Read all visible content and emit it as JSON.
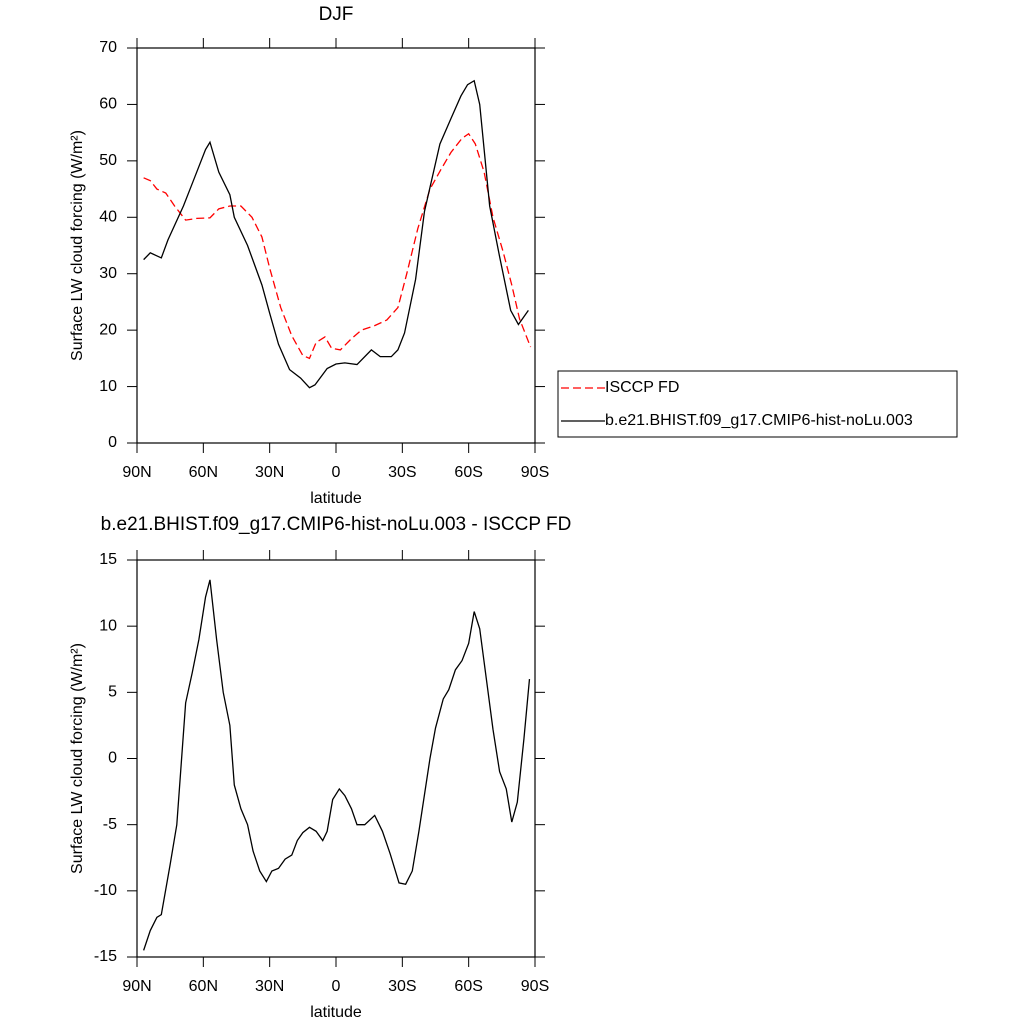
{
  "chart_data": [
    {
      "type": "line",
      "title": "DJF",
      "xlabel": "latitude",
      "ylabel": "Surface LW cloud forcing (W/m²)",
      "xlim": [
        90,
        -90
      ],
      "xticks": [
        {
          "value": 90,
          "label": "90N"
        },
        {
          "value": 60,
          "label": "60N"
        },
        {
          "value": 30,
          "label": "30N"
        },
        0,
        {
          "value": -30,
          "label": "30S"
        },
        {
          "value": -60,
          "label": "60S"
        },
        {
          "value": -90,
          "label": "90S"
        }
      ],
      "ylim": [
        0,
        70
      ],
      "yticks": [
        0,
        10,
        20,
        30,
        40,
        50,
        60,
        70
      ],
      "legend": "right",
      "series": [
        {
          "name": "ISCCP FD",
          "color": "#ff0000",
          "linestyle": "dashed",
          "x": [
            87,
            84,
            81,
            77,
            73,
            68,
            63,
            57,
            53,
            48,
            43,
            38,
            33.5,
            30,
            25,
            20,
            15,
            12,
            9,
            5,
            2,
            -2,
            -7,
            -11.5,
            -17.5,
            -23,
            -28,
            -32,
            -37,
            -42.5,
            -47.5,
            -52,
            -57,
            -60,
            -63,
            -67,
            -71,
            -75.5,
            -79.5,
            -83,
            -88
          ],
          "values": [
            47,
            46.5,
            45,
            44.3,
            42,
            39.5,
            39.8,
            39.9,
            41.5,
            42,
            42,
            40,
            36.5,
            31,
            24,
            19,
            15.5,
            15,
            17.8,
            18.8,
            16.8,
            16.5,
            18.5,
            20,
            20.8,
            21.8,
            24,
            30,
            38,
            45,
            48.5,
            51.5,
            54,
            54.8,
            53,
            48,
            40,
            34,
            28,
            22,
            17
          ]
        },
        {
          "name": "b.e21.BHIST.f09_g17.CMIP6-hist-noLu.003",
          "color": "#000000",
          "linestyle": "solid",
          "x": [
            87,
            84,
            79,
            76,
            69,
            65,
            59,
            57,
            53,
            48,
            46,
            40,
            33.5,
            30,
            26,
            21,
            16,
            12,
            9.5,
            4,
            0,
            -4,
            -9.5,
            -16,
            -20,
            -25,
            -28,
            -31,
            -36,
            -40,
            -47,
            -52,
            -56.5,
            -59.5,
            -62.5,
            -65,
            -69.5,
            -74,
            -79,
            -82.5,
            -87
          ],
          "values": [
            32.5,
            33.7,
            32.8,
            36,
            42,
            46,
            52,
            53.3,
            48,
            44,
            40,
            35,
            28,
            23,
            17.5,
            13,
            11.5,
            9.8,
            10.3,
            13.2,
            14,
            14.2,
            13.9,
            16.5,
            15.3,
            15.3,
            16.5,
            19.5,
            29,
            41,
            53,
            57.5,
            61.5,
            63.5,
            64.2,
            60,
            42,
            33,
            23.5,
            21,
            23.5
          ]
        }
      ]
    },
    {
      "type": "line",
      "title": "b.e21.BHIST.f09_g17.CMIP6-hist-noLu.003 - ISCCP FD",
      "xlabel": "latitude",
      "ylabel": "Surface LW cloud forcing (W/m²)",
      "xlim": [
        90,
        -90
      ],
      "xticks": [
        {
          "value": 90,
          "label": "90N"
        },
        {
          "value": 60,
          "label": "60N"
        },
        {
          "value": 30,
          "label": "30N"
        },
        0,
        {
          "value": -30,
          "label": "30S"
        },
        {
          "value": -60,
          "label": "60S"
        },
        {
          "value": -90,
          "label": "90S"
        }
      ],
      "ylim": [
        -15,
        15
      ],
      "yticks": [
        -15,
        -10,
        -5,
        0,
        5,
        10,
        15
      ],
      "series": [
        {
          "color": "#000000",
          "linestyle": "solid",
          "x": [
            87,
            84,
            81,
            79,
            75,
            72,
            68,
            65,
            62,
            59,
            57,
            54,
            51,
            48,
            46,
            43,
            40,
            37.5,
            34.5,
            31.5,
            29,
            26,
            23,
            20,
            17.5,
            15,
            12,
            9,
            6,
            4,
            1.5,
            -1.5,
            -4,
            -7,
            -9.5,
            -13,
            -17.5,
            -21,
            -24.5,
            -28.5,
            -31.5,
            -34.5,
            -37.5,
            -42.5,
            -45,
            -48.5,
            -51,
            -54,
            -57,
            -60,
            -62.5,
            -65,
            -68,
            -71,
            -74,
            -77,
            -79.5,
            -82,
            -85,
            -87.5
          ],
          "values": [
            -14.5,
            -13,
            -12,
            -11.8,
            -8,
            -5,
            4.2,
            6.5,
            9,
            12.2,
            13.5,
            9,
            5,
            2.5,
            -2,
            -3.8,
            -5,
            -7,
            -8.5,
            -9.3,
            -8.5,
            -8.3,
            -7.6,
            -7.3,
            -6.2,
            -5.6,
            -5.2,
            -5.5,
            -6.2,
            -5.5,
            -3.1,
            -2.3,
            -2.8,
            -3.8,
            -5,
            -5,
            -4.3,
            -5.5,
            -7.2,
            -9.4,
            -9.5,
            -8.5,
            -5.5,
            0,
            2.3,
            4.5,
            5.2,
            6.7,
            7.4,
            8.7,
            11.1,
            9.8,
            6,
            2.2,
            -1,
            -2.3,
            -4.8,
            -3.3,
            1.5,
            6
          ]
        }
      ]
    }
  ]
}
